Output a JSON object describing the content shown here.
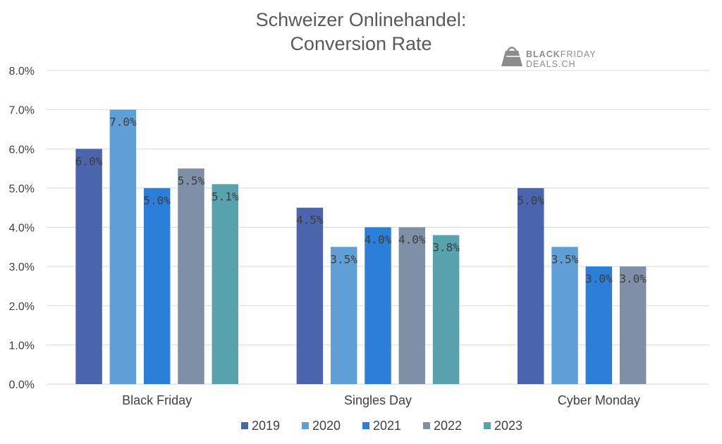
{
  "chart_data": {
    "type": "bar",
    "title": "Schweizer Onlinehandel:",
    "subtitle": "Conversion Rate",
    "categories": [
      "Black Friday",
      "Singles Day",
      "Cyber Monday"
    ],
    "series": [
      {
        "name": "2019",
        "color": "#4a64ad",
        "values": [
          6.0,
          4.5,
          5.0
        ]
      },
      {
        "name": "2020",
        "color": "#5f9fd6",
        "values": [
          7.0,
          3.5,
          3.5
        ]
      },
      {
        "name": "2021",
        "color": "#2b7fd9",
        "values": [
          5.0,
          4.0,
          3.0
        ]
      },
      {
        "name": "2022",
        "color": "#7f8fa8",
        "values": [
          5.5,
          4.0,
          3.0
        ]
      },
      {
        "name": "2023",
        "color": "#57a2ad",
        "values": [
          5.1,
          3.8,
          null
        ]
      }
    ],
    "data_labels": [
      [
        "6.0%",
        "4.5%",
        "5.0%"
      ],
      [
        "7.0%",
        "3.5%",
        "3.5%"
      ],
      [
        "5.0%",
        "4.0%",
        "3.0%"
      ],
      [
        "5.5%",
        "4.0%",
        "3.0%"
      ],
      [
        "5.1%",
        "3.8%",
        null
      ]
    ],
    "y_ticks": [
      {
        "value": 0,
        "label": "0.0%"
      },
      {
        "value": 1,
        "label": "1.0%"
      },
      {
        "value": 2,
        "label": "2.0%"
      },
      {
        "value": 3,
        "label": "3.0%"
      },
      {
        "value": 4,
        "label": "4.0%"
      },
      {
        "value": 5,
        "label": "5.0%"
      },
      {
        "value": 6,
        "label": "6.0%"
      },
      {
        "value": 7,
        "label": "7.0%"
      },
      {
        "value": 8,
        "label": "8.0%"
      }
    ],
    "ylim": [
      0,
      8
    ],
    "grid": true,
    "legend_position": "bottom",
    "xlabel": "",
    "ylabel": ""
  },
  "logo": {
    "line1_bold": "BLACK",
    "line1_rest": "FRIDAY",
    "line2": "DEALS.CH",
    "icon": "shopping-bag-icon",
    "color": "#8c8c8c"
  },
  "colors": {
    "grid": "#d9d9d9",
    "axis": "#d0d0d0"
  }
}
